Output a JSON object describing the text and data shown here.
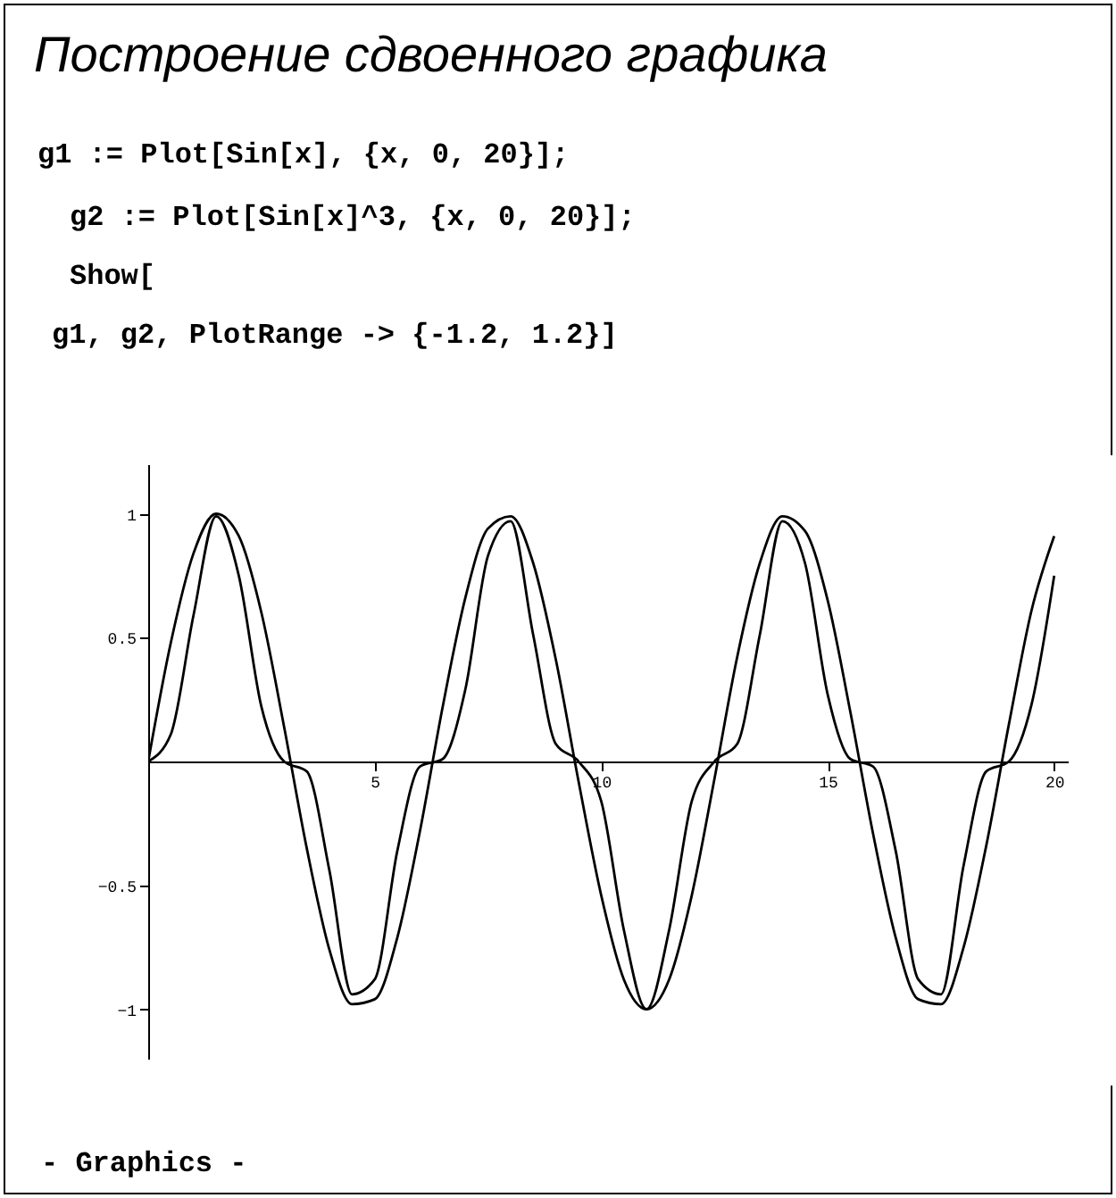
{
  "chart_data": {
    "type": "line",
    "title": "Построение сдвоенного графика",
    "annotations": [
      "g1 := Plot[Sin[x], {x, 0, 20}];",
      "g2 := Plot[Sin[x]^3, {x, 0, 20}];",
      "Show[",
      "g1, g2, PlotRange -> {-1.2, 1.2}]",
      "- Graphics -"
    ],
    "x": [
      0,
      0.5,
      1,
      1.5,
      2,
      2.5,
      3,
      3.5,
      4,
      4.5,
      5,
      5.5,
      6,
      6.5,
      7,
      7.5,
      8,
      8.5,
      9,
      9.5,
      10,
      10.5,
      11,
      11.5,
      12,
      12.5,
      13,
      13.5,
      14,
      14.5,
      15,
      15.5,
      16,
      16.5,
      17,
      17.5,
      18,
      18.5,
      19,
      19.5,
      20
    ],
    "series": [
      {
        "color": "#000000",
        "values": [
          0,
          0.48,
          0.84,
          1.0,
          0.91,
          0.6,
          0.14,
          -0.35,
          -0.76,
          -0.98,
          -0.96,
          -0.71,
          -0.28,
          0.22,
          0.66,
          0.94,
          0.99,
          0.8,
          0.41,
          -0.08,
          -0.54,
          -0.88,
          -1.0,
          -0.88,
          -0.54,
          -0.07,
          0.42,
          0.8,
          0.99,
          0.93,
          0.65,
          0.2,
          -0.29,
          -0.71,
          -0.96,
          -0.98,
          -0.75,
          -0.34,
          0.15,
          0.61,
          0.91
        ]
      },
      {
        "color": "#000000",
        "values": [
          0,
          0.11,
          0.59,
          0.99,
          0.75,
          0.22,
          0.0,
          -0.04,
          -0.44,
          -0.94,
          -0.88,
          -0.36,
          -0.02,
          0.01,
          0.29,
          0.83,
          0.97,
          0.51,
          0.07,
          0.0,
          -0.16,
          -0.68,
          -1.0,
          -0.68,
          -0.16,
          0.0,
          0.07,
          0.51,
          0.97,
          0.8,
          0.27,
          0.01,
          -0.02,
          -0.36,
          -0.88,
          -0.94,
          -0.42,
          -0.04,
          0.0,
          0.23,
          0.75
        ]
      }
    ],
    "xlim": [
      0,
      20.3
    ],
    "ylim": [
      -1.2,
      1.2
    ],
    "xticks": [
      5,
      10,
      15,
      20
    ],
    "yticks": [
      -1,
      -0.5,
      0.5,
      1
    ],
    "grid": false,
    "marker": "none",
    "line_style": "solid"
  }
}
